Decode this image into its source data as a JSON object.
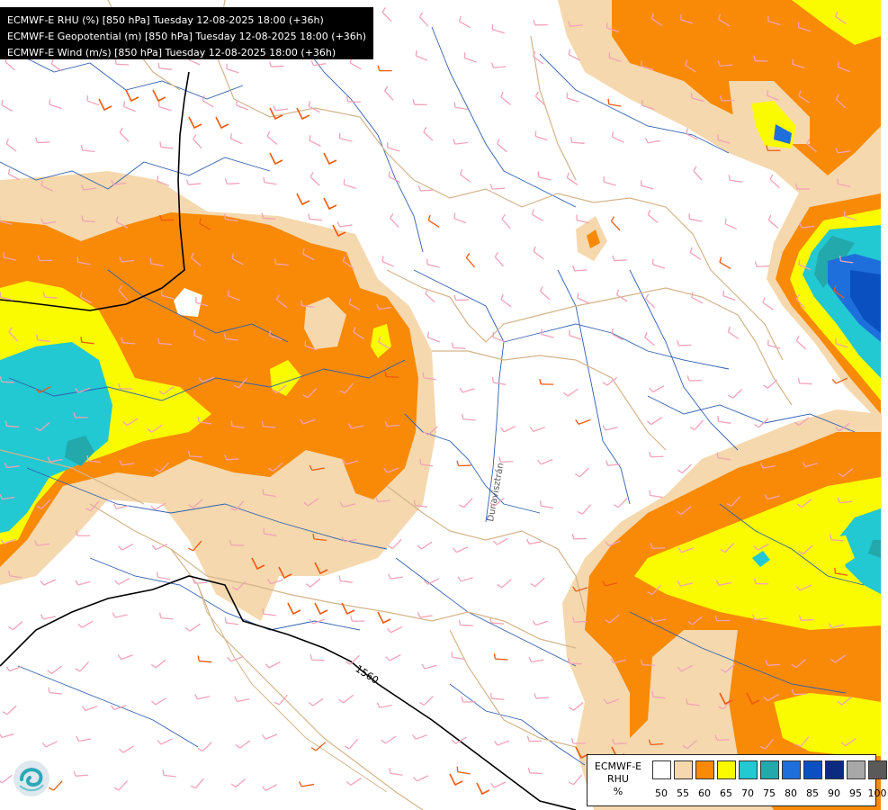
{
  "header": {
    "lines": [
      "ECMWF-E RHU (%) [850 hPa] Tuesday 12-08-2025 18:00 (+36h)",
      "ECMWF-E Geopotential (m) [850 hPa] Tuesday 12-08-2025 18:00 (+36h)",
      "ECMWF-E Wind (m/s) [850 hPa] Tuesday 12-08-2025 18:00 (+36h)"
    ]
  },
  "map": {
    "contour_label": "1560",
    "river_label": "Dunavisztrán"
  },
  "legend": {
    "title_lines": [
      "ECMWF-E",
      "RHU",
      "%"
    ],
    "levels": [
      "50",
      "55",
      "60",
      "65",
      "70",
      "75",
      "80",
      "85",
      "90",
      "95",
      "100"
    ],
    "colors": [
      "#ffffff",
      "#f5d8ae",
      "#f88a08",
      "#fafa00",
      "#22c8d2",
      "#23a8ac",
      "#1e6fdc",
      "#0a50c0",
      "#0a2b80",
      "#a8a8a8",
      "#5a5a5a"
    ]
  },
  "colors": {
    "rhu_55": "#f5d8ae",
    "rhu_60": "#f88a08",
    "rhu_65": "#fafa00",
    "rhu_70": "#22c8d2",
    "rhu_75": "#23a8ac",
    "rhu_80": "#1e6fdc",
    "rhu_85": "#0a50c0",
    "river": "#2f5fb0",
    "border": "#d4b48a",
    "wind_barb_light": "#f2a2b8",
    "wind_barb_strong": "#ee5a10",
    "geopotential_line": "#000000"
  }
}
